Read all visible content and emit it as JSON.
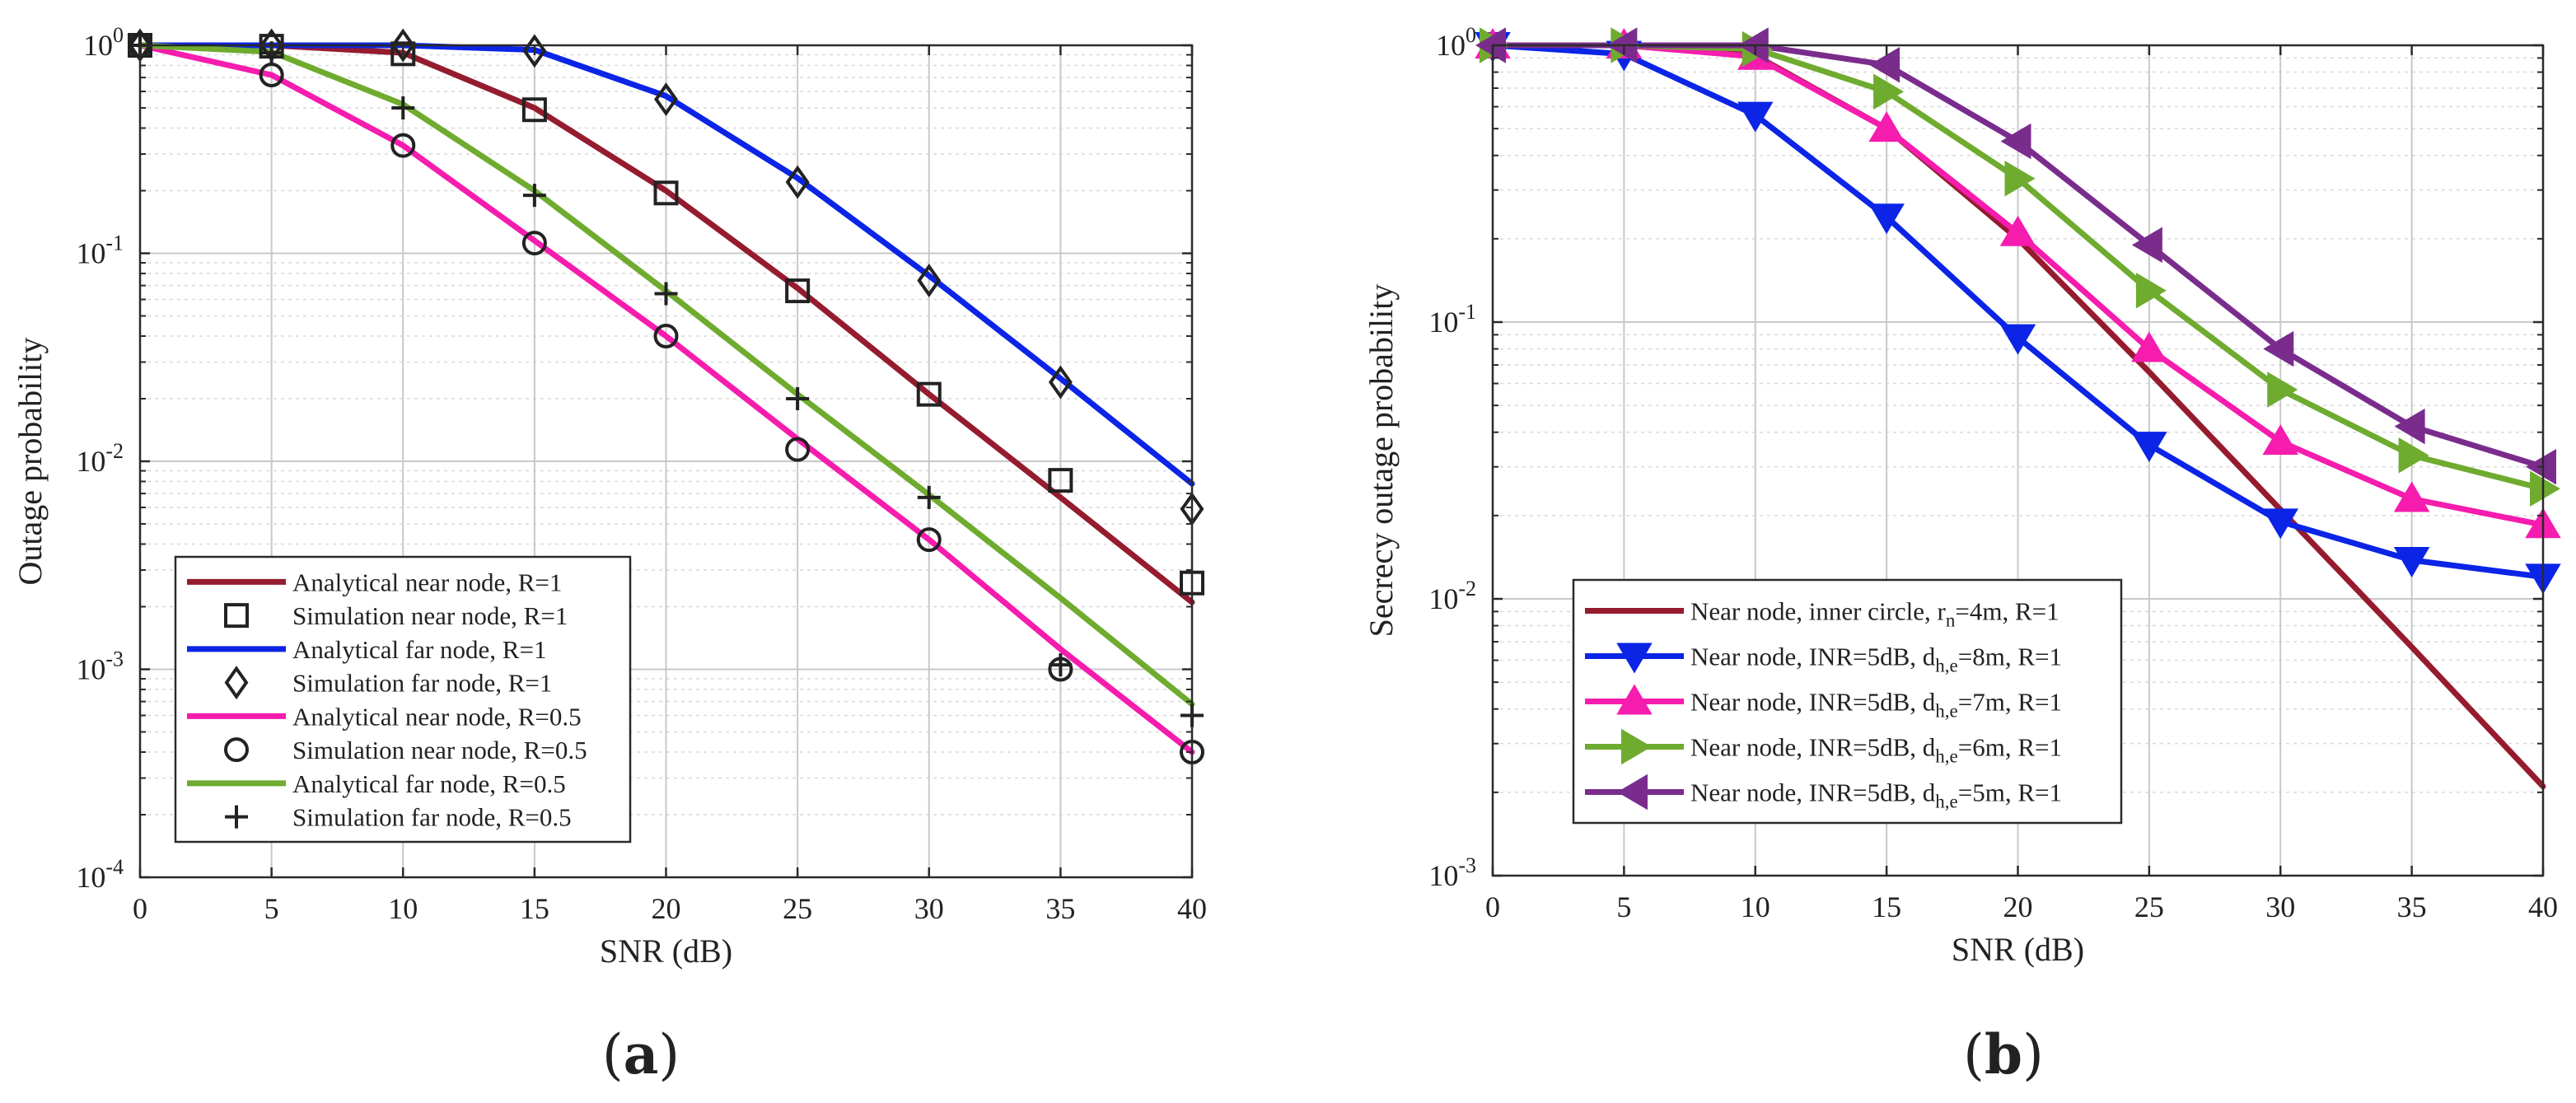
{
  "chart_data": [
    {
      "id": "a",
      "type": "line",
      "panel_label": "a",
      "xlabel": "SNR (dB)",
      "ylabel": "Outage probability",
      "yscale": "log",
      "xlim": [
        0,
        40
      ],
      "ylim": [
        0.0001,
        1
      ],
      "xticks": [
        0,
        5,
        10,
        15,
        20,
        25,
        30,
        35,
        40
      ],
      "ytick_exponents": [
        -4,
        -3,
        -2,
        -1,
        0
      ],
      "grid": true,
      "legend_position": "bottom-left",
      "series": [
        {
          "name": "Analytical near node, R=1",
          "kind": "line",
          "color": "#951b2f",
          "x": [
            0,
            5,
            10,
            15,
            20,
            25,
            30,
            35,
            40
          ],
          "y": [
            1.0,
            1.0,
            0.92,
            0.5,
            0.2,
            0.068,
            0.021,
            0.0067,
            0.0021
          ]
        },
        {
          "name": "Simulation near node, R=1",
          "kind": "marker",
          "marker": "square",
          "color": "#222222",
          "x": [
            0,
            5,
            10,
            15,
            20,
            25,
            30,
            35,
            40
          ],
          "y": [
            1.0,
            0.99,
            0.91,
            0.49,
            0.195,
            0.066,
            0.021,
            0.0081,
            0.0026
          ]
        },
        {
          "name": "Analytical far node, R=1",
          "kind": "line",
          "color": "#0b24e6",
          "x": [
            0,
            5,
            10,
            15,
            20,
            25,
            30,
            35,
            40
          ],
          "y": [
            1.0,
            1.0,
            1.0,
            0.95,
            0.57,
            0.23,
            0.078,
            0.025,
            0.0078
          ]
        },
        {
          "name": "Simulation far node, R=1",
          "kind": "marker",
          "marker": "diamond",
          "color": "#222222",
          "x": [
            0,
            5,
            10,
            15,
            20,
            25,
            30,
            35,
            40
          ],
          "y": [
            1.0,
            1.0,
            1.0,
            0.94,
            0.55,
            0.22,
            0.074,
            0.024,
            0.0059
          ]
        },
        {
          "name": "Analytical near node, R=0.5",
          "kind": "line",
          "color": "#f51cae",
          "x": [
            0,
            5,
            10,
            15,
            20,
            25,
            30,
            35,
            40
          ],
          "y": [
            1.0,
            0.72,
            0.33,
            0.115,
            0.04,
            0.0128,
            0.0042,
            0.00125,
            0.0004
          ]
        },
        {
          "name": "Simulation near node, R=0.5",
          "kind": "marker",
          "marker": "circle",
          "color": "#222222",
          "x": [
            0,
            5,
            10,
            15,
            20,
            25,
            30,
            35,
            40
          ],
          "y": [
            1.0,
            0.72,
            0.33,
            0.112,
            0.04,
            0.0114,
            0.0042,
            0.001,
            0.0004
          ]
        },
        {
          "name": "Analytical far node, R=0.5",
          "kind": "line",
          "color": "#6eab2f",
          "x": [
            0,
            5,
            10,
            15,
            20,
            25,
            30,
            35,
            40
          ],
          "y": [
            1.0,
            0.93,
            0.52,
            0.2,
            0.066,
            0.021,
            0.0069,
            0.0022,
            0.00068
          ]
        },
        {
          "name": "Simulation far node, R=0.5",
          "kind": "marker",
          "marker": "plus",
          "color": "#222222",
          "x": [
            0,
            5,
            10,
            15,
            20,
            25,
            30,
            35,
            40
          ],
          "y": [
            1.0,
            0.92,
            0.5,
            0.19,
            0.064,
            0.02,
            0.0067,
            0.00105,
            0.0006
          ]
        }
      ]
    },
    {
      "id": "b",
      "type": "line",
      "panel_label": "b",
      "xlabel": "SNR (dB)",
      "ylabel": "Secrecy outage probability",
      "yscale": "log",
      "xlim": [
        0,
        40
      ],
      "ylim": [
        0.001,
        1
      ],
      "xticks": [
        0,
        5,
        10,
        15,
        20,
        25,
        30,
        35,
        40
      ],
      "ytick_exponents": [
        -3,
        -2,
        -1,
        0
      ],
      "grid": true,
      "legend_position": "bottom-left",
      "series": [
        {
          "name": "Near node, inner circle, r_n=4m, R=1",
          "legend_parts": [
            [
              "Near node, inner circle, r",
              ""
            ],
            [
              "n",
              "sub"
            ],
            [
              "=4m, R=1",
              ""
            ]
          ],
          "kind": "line",
          "color": "#951b2f",
          "x": [
            0,
            5,
            10,
            15,
            20,
            25,
            30,
            35,
            40
          ],
          "y": [
            1.0,
            1.0,
            0.92,
            0.5,
            0.2,
            0.066,
            0.021,
            0.0067,
            0.0021
          ]
        },
        {
          "name": "Near node, INR=5dB, d_h,e=8m, R=1",
          "legend_parts": [
            [
              "Near node, INR=5dB, d",
              ""
            ],
            [
              "h,e",
              "sub"
            ],
            [
              "=8m, R=1",
              ""
            ]
          ],
          "kind": "line+marker",
          "marker": "triangle-down",
          "color": "#0b24e6",
          "x": [
            0,
            5,
            10,
            15,
            20,
            25,
            30,
            35,
            40
          ],
          "y": [
            1.0,
            0.93,
            0.56,
            0.24,
            0.088,
            0.036,
            0.019,
            0.0138,
            0.012
          ]
        },
        {
          "name": "Near node, INR=5dB, d_h,e=7m, R=1",
          "legend_parts": [
            [
              "Near node, INR=5dB, d",
              ""
            ],
            [
              "h,e",
              "sub"
            ],
            [
              "=7m, R=1",
              ""
            ]
          ],
          "kind": "line+marker",
          "marker": "triangle-up",
          "color": "#f51cae",
          "x": [
            0,
            5,
            10,
            15,
            20,
            25,
            30,
            35,
            40
          ],
          "y": [
            1.0,
            1.0,
            0.91,
            0.5,
            0.21,
            0.08,
            0.037,
            0.023,
            0.0185
          ]
        },
        {
          "name": "Near node, INR=5dB, d_h,e=6m, R=1",
          "legend_parts": [
            [
              "Near node, INR=5dB, d",
              ""
            ],
            [
              "h,e",
              "sub"
            ],
            [
              "=6m, R=1",
              ""
            ]
          ],
          "kind": "line+marker",
          "marker": "triangle-right",
          "color": "#6eab2f",
          "x": [
            0,
            5,
            10,
            15,
            20,
            25,
            30,
            35,
            40
          ],
          "y": [
            1.0,
            1.0,
            0.97,
            0.68,
            0.33,
            0.13,
            0.057,
            0.033,
            0.025
          ]
        },
        {
          "name": "Near node, INR=5dB, d_h,e=5m, R=1",
          "legend_parts": [
            [
              "Near node, INR=5dB, d",
              ""
            ],
            [
              "h,e",
              "sub"
            ],
            [
              "=5m, R=1",
              ""
            ]
          ],
          "kind": "line+marker",
          "marker": "triangle-left",
          "color": "#7a2c8c",
          "x": [
            0,
            5,
            10,
            15,
            20,
            25,
            30,
            35,
            40
          ],
          "y": [
            1.0,
            1.0,
            1.0,
            0.85,
            0.45,
            0.19,
            0.08,
            0.042,
            0.03
          ]
        }
      ]
    }
  ]
}
